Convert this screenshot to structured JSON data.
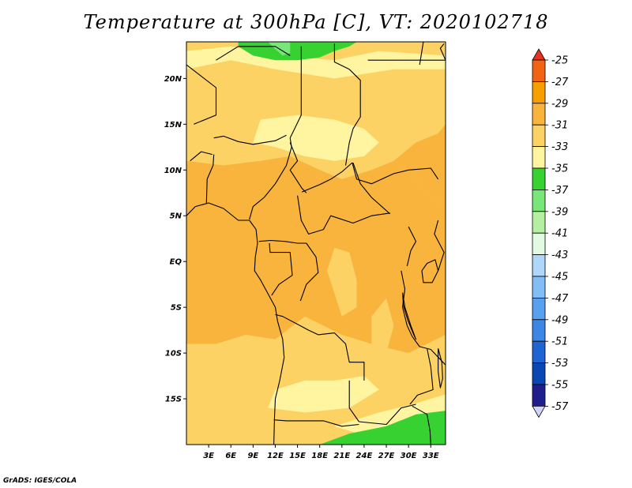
{
  "title": "Temperature at 300hPa [C], VT: 2020102718",
  "credit": "GrADS: IGES/COLA",
  "map": {
    "lon_range": [
      0,
      35
    ],
    "lat_range": [
      -20,
      24
    ],
    "lon_ticks": [
      "3E",
      "6E",
      "9E",
      "12E",
      "15E",
      "18E",
      "21E",
      "24E",
      "27E",
      "30E",
      "33E"
    ],
    "lon_tick_values": [
      3,
      6,
      9,
      12,
      15,
      18,
      21,
      24,
      27,
      30,
      33
    ],
    "lat_ticks": [
      "20N",
      "15N",
      "10N",
      "5N",
      "EQ",
      "5S",
      "10S",
      "15S"
    ],
    "lat_tick_values": [
      20,
      15,
      10,
      5,
      0,
      -5,
      -10,
      -15
    ]
  },
  "colorbar": {
    "labels": [
      "-25",
      "-27",
      "-29",
      "-31",
      "-33",
      "-35",
      "-37",
      "-39",
      "-41",
      "-43",
      "-45",
      "-47",
      "-49",
      "-51",
      "-53",
      "-55",
      "-57"
    ],
    "colors": [
      "#e8321e",
      "#f06414",
      "#f5a000",
      "#f8b43c",
      "#fcd264",
      "#fff5a0",
      "#37d232",
      "#78e678",
      "#b4f0a0",
      "#e1fae1",
      "#afd7fa",
      "#82bef5",
      "#5aa0f0",
      "#3c87e6",
      "#1e64d2",
      "#0a46b4",
      "#1e1e8c",
      "#d2d2fa"
    ]
  },
  "field_colors": {
    "t31": "#f8b43c",
    "t33": "#fcd264",
    "t35": "#fff5a0",
    "t37": "#37d232",
    "t39": "#78e678",
    "border": "#000000"
  }
}
